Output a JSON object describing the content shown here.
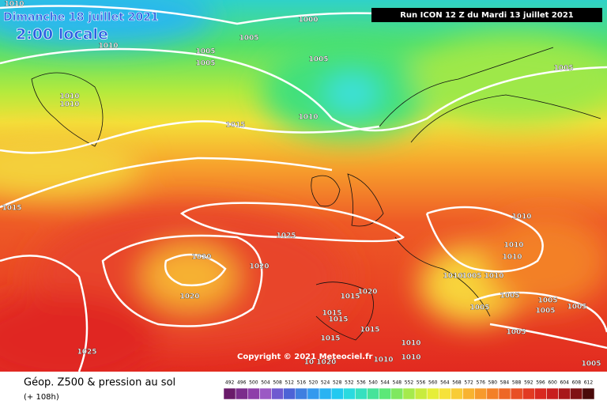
{
  "header": {
    "date": "Dimanche 18 juillet 2021",
    "time": "2:00 locale",
    "run": "Run ICON 12 Z du Mardi 13 juillet 2021"
  },
  "copyright": "Copyright © 2021 Meteociel.fr",
  "footer": {
    "title": "Géop. Z500 & pression au sol",
    "lead": "(+ 108h)"
  },
  "scale": [
    492,
    496,
    500,
    504,
    508,
    512,
    516,
    520,
    524,
    528,
    532,
    536,
    540,
    544,
    548,
    552,
    556,
    560,
    564,
    568,
    572,
    576,
    580,
    584,
    588,
    592,
    596,
    600,
    604,
    608,
    612
  ],
  "isobar_labels": [
    "1010",
    "1005",
    "1010",
    "1000",
    "1005",
    "1005",
    "1005",
    "1010",
    "1010",
    "1010",
    "1015",
    "1005",
    "1015",
    "1025",
    "1010",
    "1010",
    "1010",
    "1020",
    "1020",
    "1010",
    "1005",
    "1010",
    "1020",
    "1020",
    "1015",
    "1005",
    "1005",
    "1005",
    "1005",
    "1015",
    "1015",
    "1015",
    "1005",
    "1005",
    "1025",
    "1010",
    "1010",
    "1010",
    "1015",
    "10 1020",
    "1005"
  ]
}
